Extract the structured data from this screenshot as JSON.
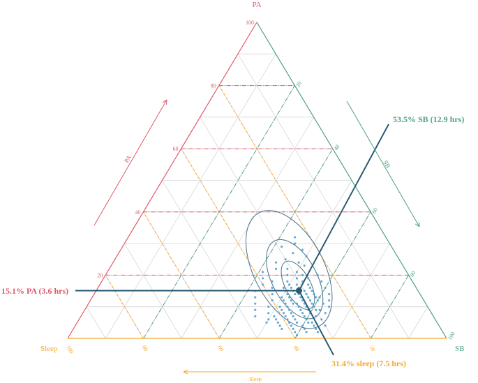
{
  "chart_data": {
    "type": "scatter",
    "subtype": "ternary",
    "axes": {
      "pa": {
        "label": "PA",
        "arrow_label": "PA",
        "color": "#e05a6a",
        "ticks": [
          "20",
          "40",
          "60",
          "80",
          "100"
        ]
      },
      "sb": {
        "label": "SB",
        "arrow_label": "SB",
        "color": "#4f9f86",
        "ticks": [
          "20",
          "40",
          "60",
          "80",
          "100"
        ]
      },
      "sleep": {
        "label": "Sleep",
        "arrow_label": "Sleep",
        "color": "#f4a82e",
        "ticks": [
          "20",
          "40",
          "60",
          "80",
          "100"
        ]
      }
    },
    "grid": true,
    "mean": {
      "pa": 15.1,
      "sb": 53.5,
      "sleep": 31.4
    },
    "annotations": {
      "pa": "15.1% PA (3.6 hrs)",
      "sb": "53.5% SB (12.9 hrs)",
      "sleep": "31.4% sleep (7.5 hrs)"
    },
    "colors": {
      "points": "#4a9ccc",
      "contour": "#4a6f8c",
      "mean_line": "#2b5a73",
      "grid": "#d6d6d6"
    },
    "points": [
      [
        0.24,
        0.49,
        0.27
      ],
      [
        0.23,
        0.51,
        0.26
      ],
      [
        0.22,
        0.47,
        0.31
      ],
      [
        0.21,
        0.5,
        0.29
      ],
      [
        0.2,
        0.52,
        0.28
      ],
      [
        0.2,
        0.48,
        0.32
      ],
      [
        0.19,
        0.51,
        0.3
      ],
      [
        0.19,
        0.54,
        0.27
      ],
      [
        0.18,
        0.49,
        0.33
      ],
      [
        0.18,
        0.53,
        0.29
      ],
      [
        0.17,
        0.5,
        0.33
      ],
      [
        0.17,
        0.55,
        0.28
      ],
      [
        0.17,
        0.52,
        0.31
      ],
      [
        0.16,
        0.49,
        0.35
      ],
      [
        0.16,
        0.53,
        0.31
      ],
      [
        0.16,
        0.56,
        0.28
      ],
      [
        0.16,
        0.51,
        0.33
      ],
      [
        0.15,
        0.54,
        0.31
      ],
      [
        0.15,
        0.5,
        0.35
      ],
      [
        0.15,
        0.57,
        0.28
      ],
      [
        0.15,
        0.52,
        0.33
      ],
      [
        0.15,
        0.55,
        0.3
      ],
      [
        0.14,
        0.53,
        0.33
      ],
      [
        0.14,
        0.56,
        0.3
      ],
      [
        0.14,
        0.51,
        0.35
      ],
      [
        0.14,
        0.58,
        0.28
      ],
      [
        0.14,
        0.54,
        0.32
      ],
      [
        0.13,
        0.52,
        0.35
      ],
      [
        0.13,
        0.55,
        0.32
      ],
      [
        0.13,
        0.57,
        0.3
      ],
      [
        0.13,
        0.5,
        0.37
      ],
      [
        0.13,
        0.59,
        0.28
      ],
      [
        0.12,
        0.53,
        0.35
      ],
      [
        0.12,
        0.56,
        0.32
      ],
      [
        0.12,
        0.58,
        0.3
      ],
      [
        0.12,
        0.51,
        0.37
      ],
      [
        0.12,
        0.6,
        0.28
      ],
      [
        0.11,
        0.54,
        0.35
      ],
      [
        0.11,
        0.57,
        0.32
      ],
      [
        0.11,
        0.52,
        0.37
      ],
      [
        0.11,
        0.59,
        0.3
      ],
      [
        0.11,
        0.55,
        0.34
      ],
      [
        0.1,
        0.53,
        0.37
      ],
      [
        0.1,
        0.56,
        0.34
      ],
      [
        0.1,
        0.58,
        0.32
      ],
      [
        0.1,
        0.6,
        0.3
      ],
      [
        0.1,
        0.51,
        0.39
      ],
      [
        0.09,
        0.54,
        0.37
      ],
      [
        0.09,
        0.57,
        0.34
      ],
      [
        0.09,
        0.59,
        0.32
      ],
      [
        0.09,
        0.52,
        0.39
      ],
      [
        0.09,
        0.61,
        0.3
      ],
      [
        0.08,
        0.55,
        0.37
      ],
      [
        0.08,
        0.58,
        0.34
      ],
      [
        0.08,
        0.53,
        0.39
      ],
      [
        0.08,
        0.6,
        0.32
      ],
      [
        0.07,
        0.56,
        0.37
      ],
      [
        0.07,
        0.54,
        0.39
      ],
      [
        0.07,
        0.59,
        0.34
      ],
      [
        0.07,
        0.51,
        0.42
      ],
      [
        0.06,
        0.57,
        0.37
      ],
      [
        0.06,
        0.55,
        0.39
      ],
      [
        0.06,
        0.6,
        0.34
      ],
      [
        0.06,
        0.52,
        0.42
      ],
      [
        0.05,
        0.58,
        0.37
      ],
      [
        0.05,
        0.56,
        0.39
      ],
      [
        0.05,
        0.53,
        0.42
      ],
      [
        0.05,
        0.61,
        0.34
      ],
      [
        0.04,
        0.57,
        0.39
      ],
      [
        0.04,
        0.54,
        0.42
      ],
      [
        0.04,
        0.6,
        0.36
      ],
      [
        0.03,
        0.58,
        0.39
      ],
      [
        0.03,
        0.55,
        0.42
      ],
      [
        0.03,
        0.61,
        0.36
      ],
      [
        0.02,
        0.59,
        0.39
      ],
      [
        0.18,
        0.45,
        0.37
      ],
      [
        0.16,
        0.46,
        0.38
      ],
      [
        0.14,
        0.47,
        0.39
      ],
      [
        0.12,
        0.48,
        0.4
      ],
      [
        0.1,
        0.48,
        0.42
      ],
      [
        0.08,
        0.49,
        0.43
      ],
      [
        0.06,
        0.5,
        0.44
      ],
      [
        0.05,
        0.5,
        0.45
      ],
      [
        0.2,
        0.56,
        0.24
      ],
      [
        0.18,
        0.58,
        0.24
      ],
      [
        0.16,
        0.6,
        0.24
      ],
      [
        0.14,
        0.62,
        0.24
      ],
      [
        0.12,
        0.63,
        0.25
      ],
      [
        0.1,
        0.64,
        0.26
      ],
      [
        0.08,
        0.64,
        0.28
      ],
      [
        0.06,
        0.64,
        0.3
      ],
      [
        0.04,
        0.63,
        0.33
      ],
      [
        0.27,
        0.46,
        0.27
      ],
      [
        0.25,
        0.45,
        0.3
      ],
      [
        0.26,
        0.5,
        0.24
      ],
      [
        0.28,
        0.48,
        0.24
      ],
      [
        0.3,
        0.45,
        0.25
      ],
      [
        0.32,
        0.44,
        0.24
      ],
      [
        0.29,
        0.42,
        0.29
      ],
      [
        0.03,
        0.64,
        0.33
      ],
      [
        0.02,
        0.62,
        0.36
      ],
      [
        0.01,
        0.6,
        0.39
      ],
      [
        0.02,
        0.65,
        0.33
      ],
      [
        0.04,
        0.66,
        0.3
      ],
      [
        0.11,
        0.44,
        0.45
      ],
      [
        0.09,
        0.45,
        0.46
      ],
      [
        0.07,
        0.46,
        0.47
      ],
      [
        0.13,
        0.43,
        0.44
      ],
      [
        0.15,
        0.42,
        0.43
      ],
      [
        0.17,
        0.43,
        0.4
      ],
      [
        0.22,
        0.44,
        0.34
      ],
      [
        0.24,
        0.43,
        0.33
      ],
      [
        0.19,
        0.42,
        0.39
      ],
      [
        0.21,
        0.41,
        0.38
      ],
      [
        0.13,
        0.6,
        0.27
      ],
      [
        0.11,
        0.62,
        0.27
      ],
      [
        0.09,
        0.62,
        0.29
      ],
      [
        0.07,
        0.62,
        0.31
      ],
      [
        0.05,
        0.62,
        0.33
      ]
    ]
  }
}
